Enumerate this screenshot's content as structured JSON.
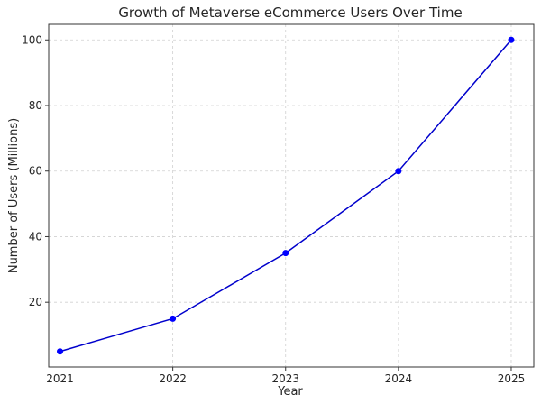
{
  "chart_data": {
    "type": "line",
    "title": "Growth of Metaverse eCommerce Users Over Time",
    "xlabel": "Year",
    "ylabel": "Number of Users (Millions)",
    "categories": [
      "2021",
      "2022",
      "2023",
      "2024",
      "2025"
    ],
    "x": [
      2021,
      2022,
      2023,
      2024,
      2025
    ],
    "y": [
      5,
      15,
      35,
      60,
      100
    ],
    "xlim": [
      2020.9,
      2025.2
    ],
    "ylim": [
      0.25,
      104.75
    ],
    "yticks": [
      20,
      40,
      60,
      80,
      100
    ],
    "grid": true,
    "grid_style": "dashed",
    "colors": {
      "line": "#0000cc",
      "marker": "#0000ff",
      "grid": "#d0d0d0",
      "axis": "#333333",
      "text": "#262626"
    },
    "marker": "circle"
  }
}
